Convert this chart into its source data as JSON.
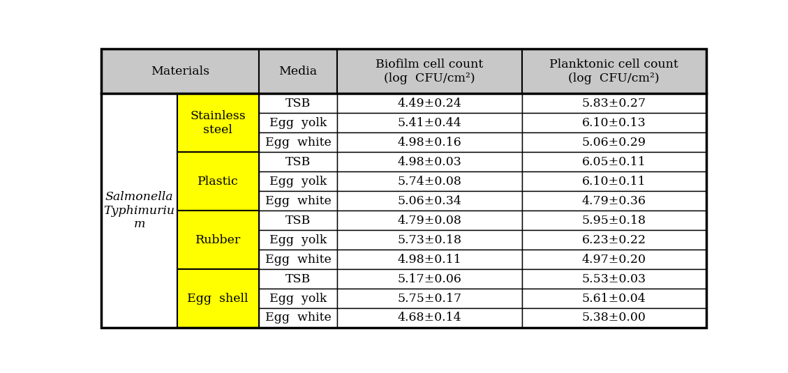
{
  "col1_header": "Materials",
  "col2_header": "Media",
  "col3_header": "Biofilm cell count\n(log  CFU/cm²)",
  "col4_header": "Planktonic cell count\n(log  CFU/cm²)",
  "bacteria_label": "Salmonella\nTyphimuriu\nm",
  "materials": [
    "Stainless\nsteel",
    "Plastic",
    "Rubber",
    "Egg  shell"
  ],
  "media": [
    "TSB",
    "Egg  yolk",
    "Egg  white"
  ],
  "biofilm": [
    [
      "4.49±0.24",
      "5.41±0.44",
      "4.98±0.16"
    ],
    [
      "4.98±0.03",
      "5.74±0.08",
      "5.06±0.34"
    ],
    [
      "4.79±0.08",
      "5.73±0.18",
      "4.98±0.11"
    ],
    [
      "5.17±0.06",
      "5.75±0.17",
      "4.68±0.14"
    ]
  ],
  "planktonic": [
    [
      "5.83±0.27",
      "6.10±0.13",
      "5.06±0.29"
    ],
    [
      "6.05±0.11",
      "6.10±0.11",
      "4.79±0.36"
    ],
    [
      "5.95±0.18",
      "6.23±0.22",
      "4.97±0.20"
    ],
    [
      "5.53±0.03",
      "5.61±0.04",
      "5.38±0.00"
    ]
  ],
  "header_bg": "#c8c8c8",
  "material_bg_yellow": "#ffff00",
  "cell_bg_white": "#ffffff",
  "border_color": "#000000",
  "text_color": "#000000",
  "header_fontsize": 12.5,
  "cell_fontsize": 12.5,
  "bacteria_fontsize": 12.5,
  "fig_width": 11.29,
  "fig_height": 5.35,
  "dpi": 100
}
